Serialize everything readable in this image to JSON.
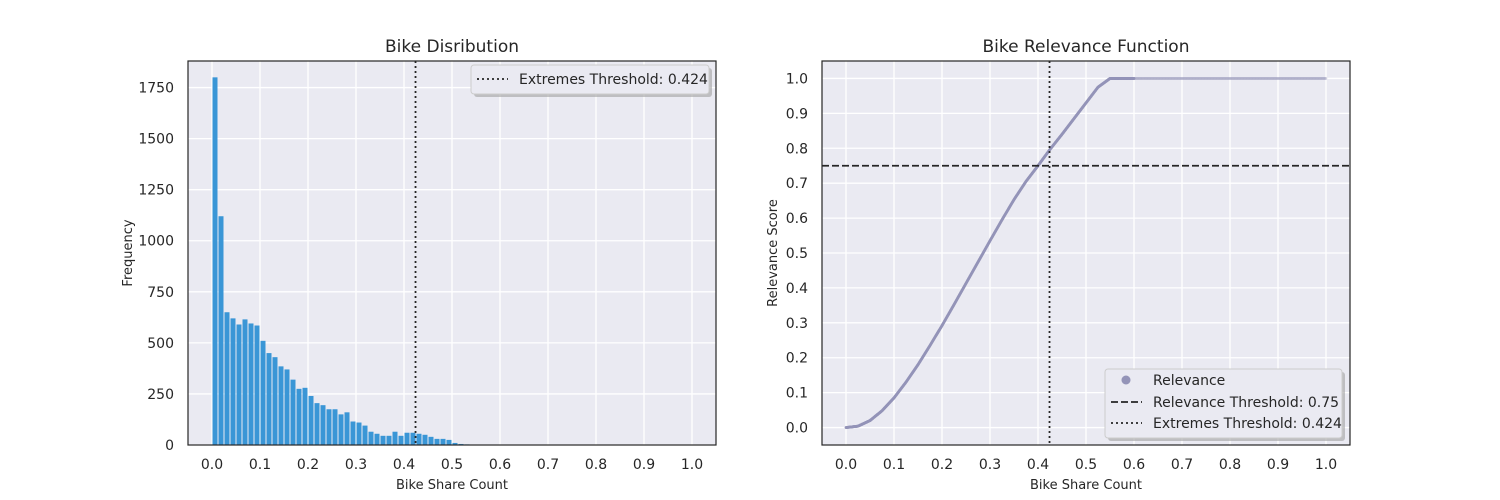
{
  "chart_data": [
    {
      "type": "bar",
      "title": "Bike Disribution",
      "xlabel": "Bike Share Count",
      "ylabel": "Frequency",
      "xlim": [
        -0.05,
        1.05
      ],
      "ylim": [
        0,
        1880
      ],
      "xticks": [
        0.0,
        0.1,
        0.2,
        0.3,
        0.4,
        0.5,
        0.6,
        0.7,
        0.8,
        0.9,
        1.0
      ],
      "xtick_labels": [
        "0.0",
        "0.1",
        "0.2",
        "0.3",
        "0.4",
        "0.5",
        "0.6",
        "0.7",
        "0.8",
        "0.9",
        "1.0"
      ],
      "yticks": [
        0,
        250,
        500,
        750,
        1000,
        1250,
        1500,
        1750
      ],
      "ytick_labels": [
        "0",
        "250",
        "500",
        "750",
        "1000",
        "1250",
        "1500",
        "1750"
      ],
      "bin_width": 0.0125,
      "bin_start": 0.0,
      "bin_values": [
        1800,
        1120,
        650,
        620,
        590,
        615,
        595,
        585,
        510,
        450,
        430,
        385,
        370,
        320,
        275,
        280,
        240,
        205,
        195,
        175,
        175,
        150,
        160,
        115,
        110,
        95,
        65,
        55,
        45,
        45,
        65,
        45,
        60,
        60,
        55,
        50,
        40,
        30,
        30,
        25,
        10,
        5,
        3,
        2,
        1
      ],
      "bar_color": "#3a96d6",
      "grid": true,
      "vlines": [
        {
          "x": 0.424,
          "style": "dotted",
          "label": "Extremes Threshold: 0.424"
        }
      ],
      "legend": {
        "position": "top-right",
        "entries": [
          "Extremes Threshold: 0.424"
        ]
      }
    },
    {
      "type": "scatter",
      "title": "Bike Relevance Function",
      "xlabel": "Bike Share Count",
      "ylabel": "Relevance Score",
      "xlim": [
        -0.05,
        1.05
      ],
      "ylim": [
        -0.05,
        1.05
      ],
      "xticks": [
        0.0,
        0.1,
        0.2,
        0.3,
        0.4,
        0.5,
        0.6,
        0.7,
        0.8,
        0.9,
        1.0
      ],
      "xtick_labels": [
        "0.0",
        "0.1",
        "0.2",
        "0.3",
        "0.4",
        "0.5",
        "0.6",
        "0.7",
        "0.8",
        "0.9",
        "1.0"
      ],
      "yticks": [
        0.0,
        0.1,
        0.2,
        0.3,
        0.4,
        0.5,
        0.6,
        0.7,
        0.8,
        0.9,
        1.0
      ],
      "ytick_labels": [
        "0.0",
        "0.1",
        "0.2",
        "0.3",
        "0.4",
        "0.5",
        "0.6",
        "0.7",
        "0.8",
        "0.9",
        "1.0"
      ],
      "series": [
        {
          "name": "Relevance",
          "color": "#9494b8",
          "x": [
            0.0,
            0.025,
            0.05,
            0.075,
            0.1,
            0.125,
            0.15,
            0.175,
            0.2,
            0.225,
            0.25,
            0.275,
            0.3,
            0.325,
            0.35,
            0.375,
            0.4,
            0.424,
            0.45,
            0.475,
            0.5,
            0.525,
            0.55,
            0.575,
            0.6,
            0.65,
            0.7,
            0.75,
            0.8,
            0.85,
            0.9,
            0.95,
            1.0
          ],
          "y": [
            0.0,
            0.004,
            0.02,
            0.048,
            0.085,
            0.13,
            0.18,
            0.235,
            0.292,
            0.352,
            0.413,
            0.474,
            0.535,
            0.595,
            0.653,
            0.705,
            0.75,
            0.795,
            0.84,
            0.885,
            0.93,
            0.975,
            1.0,
            1.0,
            1.0,
            1.0,
            1.0,
            1.0,
            1.0,
            1.0,
            1.0,
            1.0,
            1.0
          ]
        }
      ],
      "hlines": [
        {
          "y": 0.75,
          "style": "dashed",
          "label": "Relevance Threshold: 0.75"
        }
      ],
      "vlines": [
        {
          "x": 0.424,
          "style": "dotted",
          "label": "Extremes Threshold: 0.424"
        }
      ],
      "grid": true,
      "legend": {
        "position": "bottom-right",
        "entries": [
          "Relevance",
          "Relevance Threshold: 0.75",
          "Extremes Threshold: 0.424"
        ]
      }
    }
  ]
}
